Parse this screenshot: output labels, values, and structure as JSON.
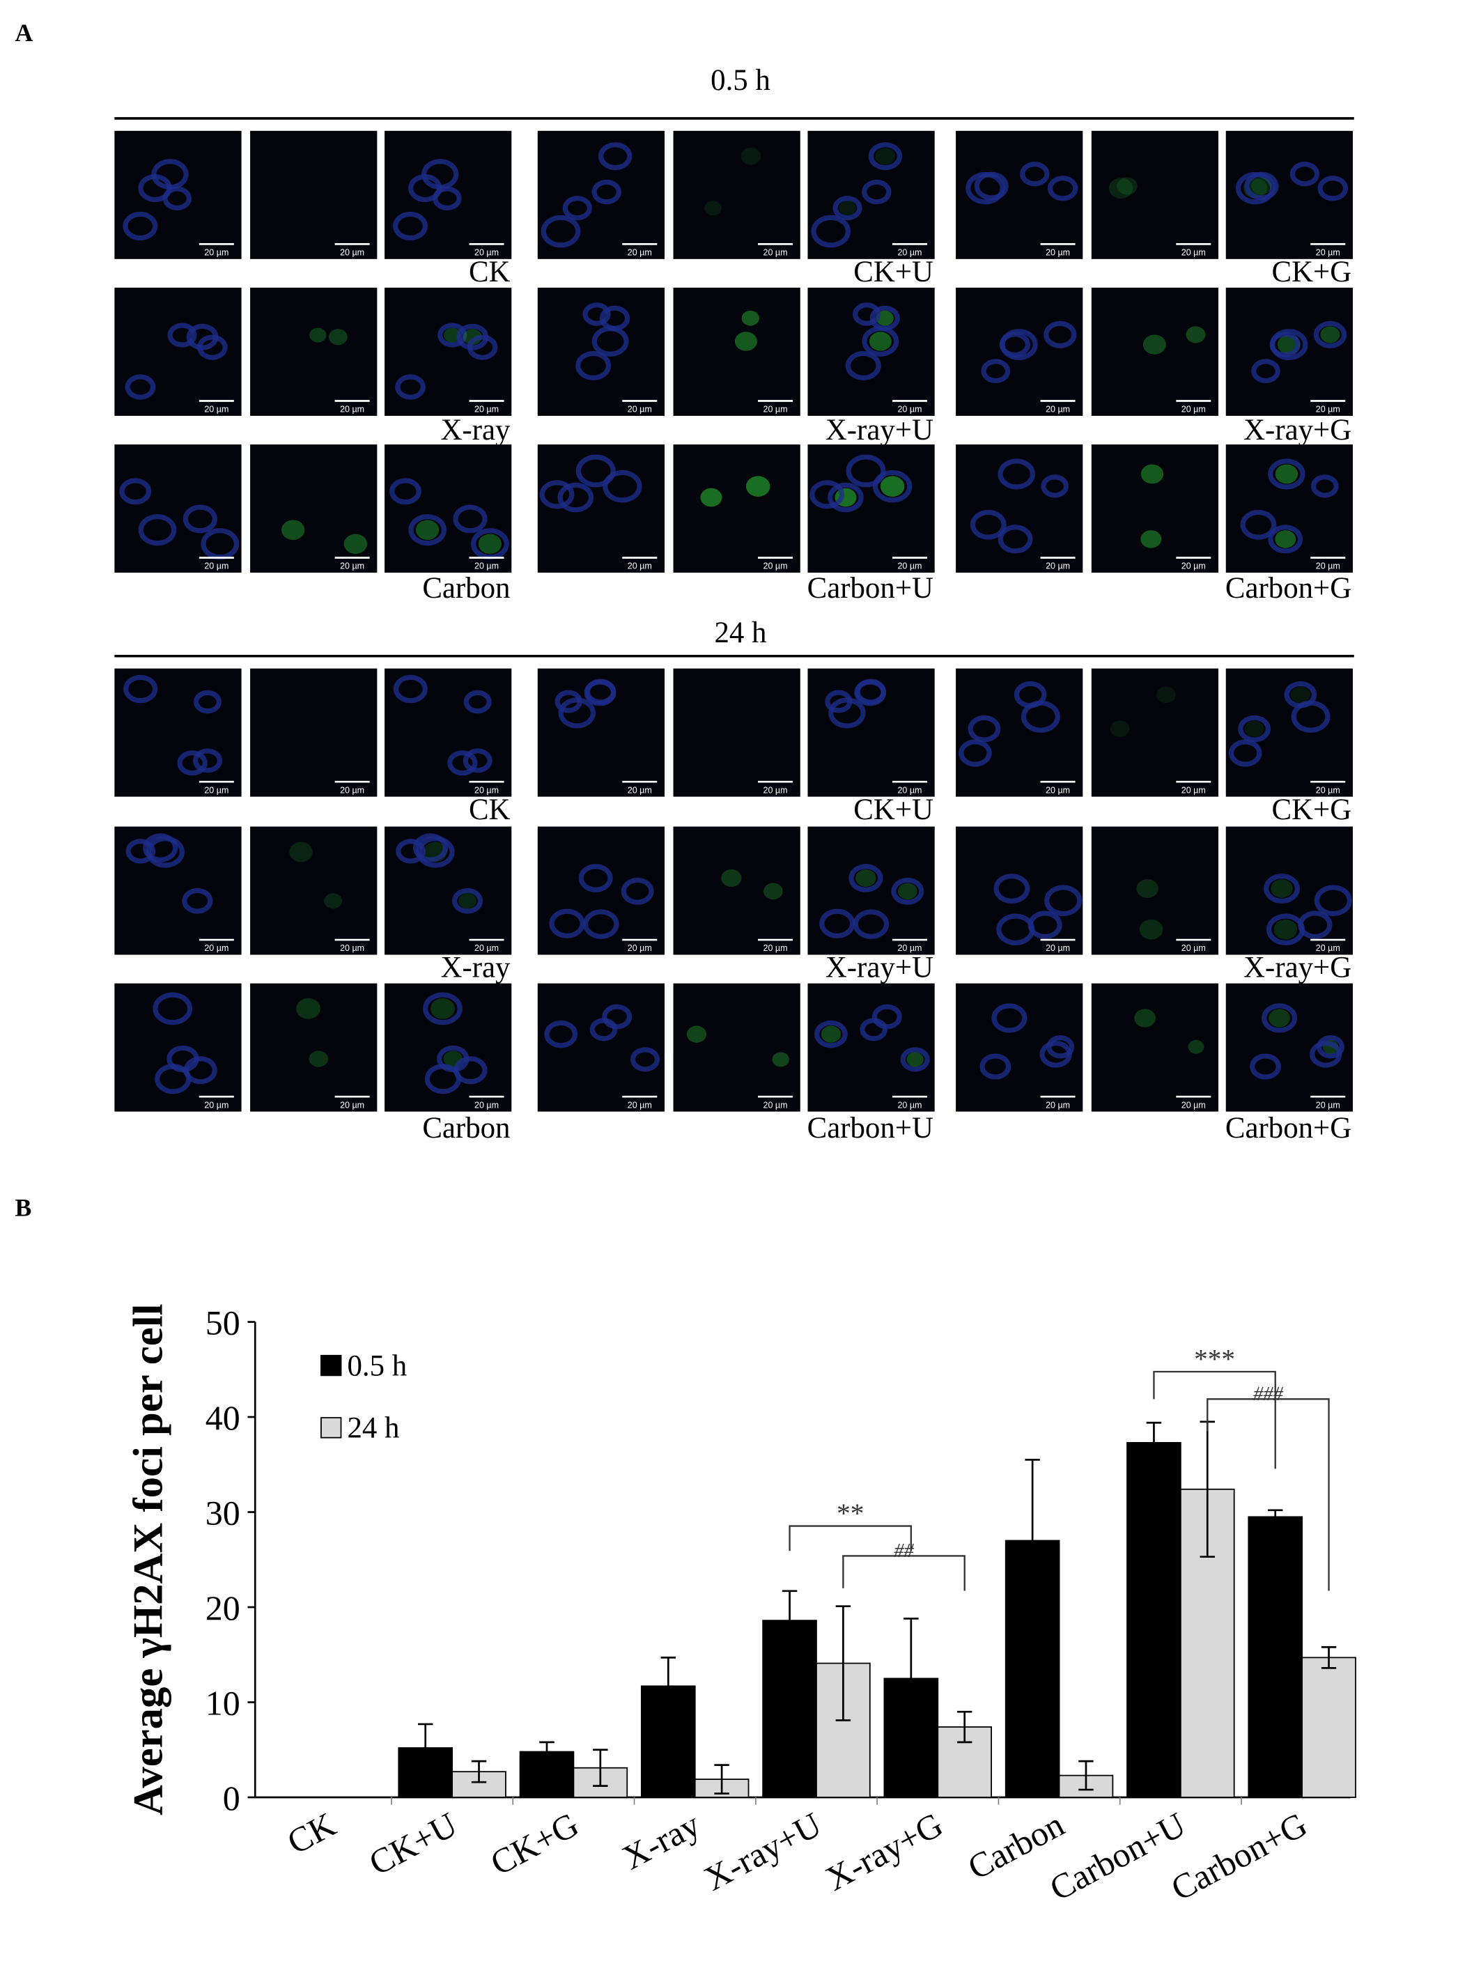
{
  "panel_a": {
    "label": "A",
    "scale_bar": "20 µm",
    "blocks": [
      {
        "time": "0.5 h",
        "groups": [
          "CK",
          "CK+U",
          "CK+G",
          "X-ray",
          "X-ray+U",
          "X-ray+G",
          "Carbon",
          "Carbon+U",
          "Carbon+G"
        ]
      },
      {
        "time": "24 h",
        "groups": [
          "CK",
          "CK+U",
          "CK+G",
          "X-ray",
          "X-ray+U",
          "X-ray+G",
          "Carbon",
          "Carbon+U",
          "Carbon+G"
        ]
      }
    ]
  },
  "panel_b": {
    "label": "B"
  },
  "chart_data": {
    "type": "bar",
    "y_label": "Average γH2AX foci per cell",
    "categories": [
      "CK",
      "CK+U",
      "CK+G",
      "X-ray",
      "X-ray+U",
      "X-ray+G",
      "Carbon",
      "Carbon+U",
      "Carbon+G"
    ],
    "series": [
      {
        "name": "0.5 h",
        "color": "#000000",
        "values": [
          0,
          5.2,
          4.8,
          11.7,
          18.6,
          12.5,
          27,
          37.3,
          29.5
        ],
        "errors": [
          0,
          2.5,
          1,
          3,
          3.1,
          6.3,
          8.5,
          2.1,
          0.7
        ]
      },
      {
        "name": "24 h",
        "color": "#d9d9d9",
        "values": [
          0,
          2.7,
          3.1,
          1.9,
          14.1,
          7.4,
          2.3,
          32.4,
          14.7
        ],
        "errors": [
          0,
          1.1,
          1.9,
          1.5,
          6,
          1.6,
          1.5,
          7.1,
          1.1
        ]
      }
    ],
    "ylim": [
      0,
      50
    ],
    "yticks": [
      0,
      10,
      20,
      30,
      40,
      50
    ],
    "annotations": [
      "**",
      "##",
      "***",
      "###"
    ]
  }
}
